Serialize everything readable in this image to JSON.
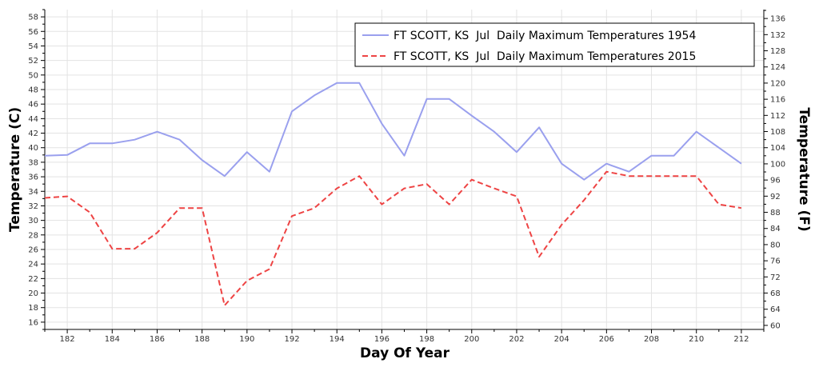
{
  "chart_data": {
    "type": "line",
    "title": "",
    "xlabel": "Day Of Year",
    "ylabel": "Temperature (C)",
    "y2label": "Temperature (F)",
    "xlim": [
      181,
      213
    ],
    "ylim": [
      15,
      59
    ],
    "y2lim": [
      59,
      138.2
    ],
    "x_ticks": [
      182,
      184,
      186,
      188,
      190,
      192,
      194,
      196,
      198,
      200,
      202,
      204,
      206,
      208,
      210,
      212
    ],
    "y_ticks": [
      16,
      18,
      20,
      22,
      24,
      26,
      28,
      30,
      32,
      34,
      36,
      38,
      40,
      42,
      44,
      46,
      48,
      50,
      52,
      54,
      56,
      58
    ],
    "y2_ticks": [
      60,
      64,
      68,
      72,
      76,
      80,
      84,
      88,
      92,
      96,
      100,
      104,
      108,
      112,
      116,
      120,
      124,
      128,
      132,
      136
    ],
    "grid": true,
    "legend_position": "top-right",
    "x": [
      181,
      182,
      183,
      184,
      185,
      186,
      187,
      188,
      189,
      190,
      191,
      192,
      193,
      194,
      195,
      196,
      197,
      198,
      199,
      200,
      201,
      202,
      203,
      204,
      205,
      206,
      207,
      208,
      209,
      210,
      211,
      212
    ],
    "series": [
      {
        "name": "FT SCOTT, KS  Jul  Daily Maximum Temperatures 1954",
        "color": "#9aa0ee",
        "dash": "solid",
        "values": [
          38.9,
          39.0,
          40.6,
          40.6,
          41.1,
          42.2,
          41.1,
          38.3,
          36.1,
          39.4,
          36.7,
          45.0,
          47.2,
          48.9,
          48.9,
          43.3,
          38.9,
          46.7,
          46.7,
          44.4,
          42.2,
          39.4,
          42.8,
          37.8,
          35.6,
          37.8,
          36.7,
          38.9,
          38.9,
          42.2,
          40.0,
          37.8
        ]
      },
      {
        "name": "FT SCOTT, KS  Jul  Daily Maximum Temperatures 2015",
        "color": "#ee4444",
        "dash": "dashed",
        "values": [
          33.1,
          33.3,
          31.1,
          26.1,
          26.1,
          28.3,
          31.7,
          31.7,
          18.3,
          21.7,
          23.3,
          30.6,
          31.7,
          34.4,
          36.1,
          32.2,
          34.4,
          35.0,
          32.2,
          35.6,
          34.4,
          33.3,
          25.0,
          29.4,
          32.8,
          36.7,
          36.1,
          36.1,
          36.1,
          36.1,
          32.2,
          31.7
        ]
      }
    ]
  }
}
